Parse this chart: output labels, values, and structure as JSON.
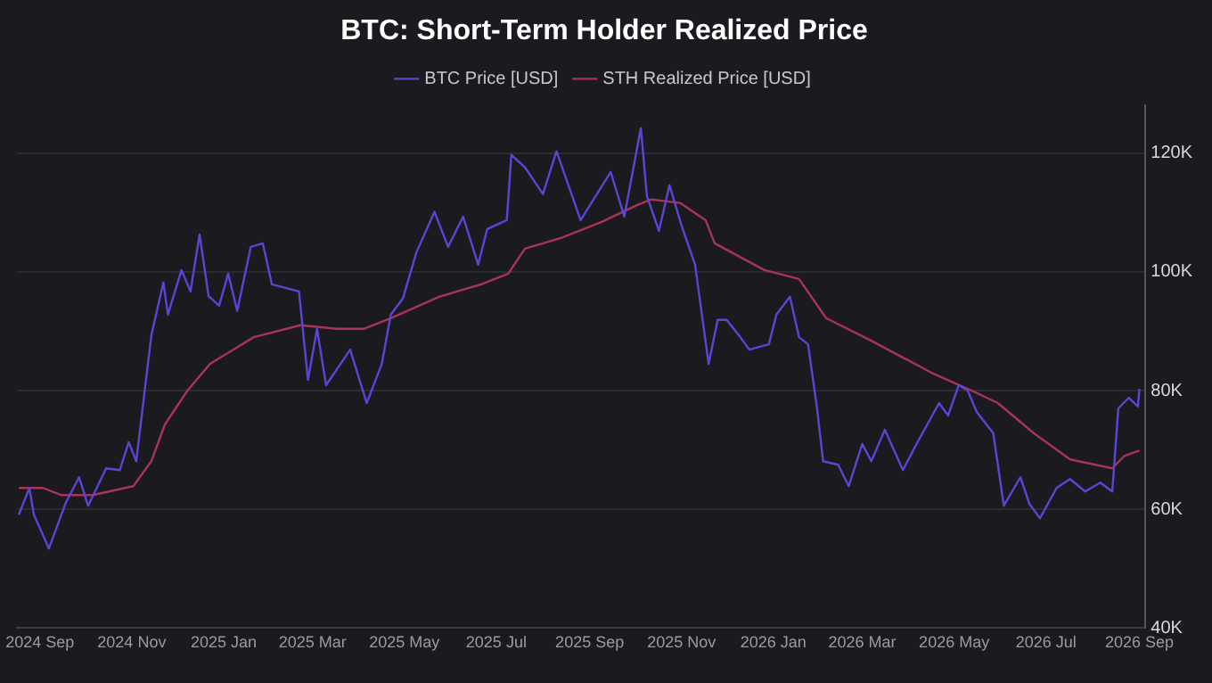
{
  "chart_data": {
    "type": "line",
    "title": "BTC: Short-Term Holder Realized Price",
    "xlim": [
      "2024-08-17",
      "2026-09-05"
    ],
    "xticks": [
      {
        "value": "2024-09-01",
        "label": "2024 Sep"
      },
      {
        "value": "2024-11-01",
        "label": "2024 Nov"
      },
      {
        "value": "2025-01-01",
        "label": "2025 Jan"
      },
      {
        "value": "2025-03-01",
        "label": "2025 Mar"
      },
      {
        "value": "2025-05-01",
        "label": "2025 May"
      },
      {
        "value": "2025-07-01",
        "label": "2025 Jul"
      },
      {
        "value": "2025-09-01",
        "label": "2025 Sep"
      },
      {
        "value": "2025-11-01",
        "label": "2025 Nov"
      },
      {
        "value": "2026-01-01",
        "label": "2026 Jan"
      },
      {
        "value": "2026-03-01",
        "label": "2026 Mar"
      },
      {
        "value": "2026-05-01",
        "label": "2026 May"
      },
      {
        "value": "2026-07-01",
        "label": "2026 Jul"
      },
      {
        "value": "2026-09-01",
        "label": "2026 Sep"
      }
    ],
    "ylim": [
      40000,
      128000
    ],
    "yticks": [
      {
        "value": 40000,
        "label": "40K"
      },
      {
        "value": 60000,
        "label": "60K"
      },
      {
        "value": 80000,
        "label": "80K"
      },
      {
        "value": 100000,
        "label": "100K"
      },
      {
        "value": 120000,
        "label": "120K"
      }
    ],
    "grid": "y",
    "legend": "top",
    "marker": "none",
    "series": [
      {
        "name": "BTC Price [USD]",
        "color": "#5b45d6",
        "x": [
          "2024-08-18",
          "2024-08-25",
          "2024-08-28",
          "2024-09-07",
          "2024-09-18",
          "2024-09-27",
          "2024-10-03",
          "2024-10-15",
          "2024-10-24",
          "2024-10-30",
          "2024-11-04",
          "2024-11-10",
          "2024-11-14",
          "2024-11-22",
          "2024-11-25",
          "2024-12-04",
          "2024-12-10",
          "2024-12-16",
          "2024-12-22",
          "2024-12-29",
          "2025-01-04",
          "2025-01-10",
          "2025-01-19",
          "2025-01-27",
          "2025-02-02",
          "2025-02-20",
          "2025-02-26",
          "2025-03-04",
          "2025-03-10",
          "2025-03-26",
          "2025-04-06",
          "2025-04-16",
          "2025-04-22",
          "2025-04-30",
          "2025-05-09",
          "2025-05-21",
          "2025-05-30",
          "2025-06-09",
          "2025-06-19",
          "2025-06-25",
          "2025-07-08",
          "2025-07-11",
          "2025-07-20",
          "2025-08-01",
          "2025-08-10",
          "2025-08-26",
          "2025-09-15",
          "2025-09-24",
          "2025-10-05",
          "2025-10-09",
          "2025-10-17",
          "2025-10-24",
          "2025-11-01",
          "2025-11-10",
          "2025-11-19",
          "2025-11-25",
          "2025-12-01",
          "2025-12-10",
          "2025-12-16",
          "2025-12-29",
          "2026-01-03",
          "2026-01-12",
          "2026-01-18",
          "2026-01-24",
          "2026-01-30",
          "2026-02-03",
          "2026-02-13",
          "2026-02-20",
          "2026-03-01",
          "2026-03-07",
          "2026-03-16",
          "2026-03-28",
          "2026-04-06",
          "2026-04-21",
          "2026-04-27",
          "2026-05-04",
          "2026-05-10",
          "2026-05-16",
          "2026-05-27",
          "2026-06-03",
          "2026-06-14",
          "2026-06-20",
          "2026-06-27",
          "2026-07-08",
          "2026-07-17",
          "2026-07-27",
          "2026-08-06",
          "2026-08-14",
          "2026-08-18",
          "2026-08-25",
          "2026-08-31",
          "2026-09-01"
        ],
        "values": [
          59100,
          63600,
          59100,
          53400,
          61000,
          65400,
          60600,
          66900,
          66600,
          71300,
          68100,
          80900,
          89300,
          98200,
          92800,
          100300,
          96700,
          106300,
          95900,
          94300,
          99700,
          93400,
          104200,
          104800,
          97900,
          96700,
          81800,
          90400,
          80900,
          86900,
          77900,
          84500,
          92800,
          95500,
          103300,
          110100,
          104200,
          109300,
          101200,
          107200,
          108700,
          119700,
          117600,
          113100,
          120300,
          108700,
          116800,
          109300,
          124200,
          112800,
          106900,
          114600,
          107800,
          101200,
          84500,
          91900,
          91900,
          89000,
          86900,
          87800,
          92800,
          95800,
          89000,
          87800,
          77000,
          68100,
          67500,
          63900,
          71000,
          68100,
          73400,
          66600,
          71000,
          77900,
          75800,
          80900,
          80000,
          76400,
          72800,
          60600,
          65400,
          60900,
          58500,
          63600,
          65100,
          63000,
          64500,
          63000,
          77000,
          78800,
          77300,
          80300
        ]
      },
      {
        "name": "STH Realized Price [USD]",
        "color": "#a8345a",
        "x": [
          "2024-08-18",
          "2024-09-03",
          "2024-09-15",
          "2024-10-06",
          "2024-11-02",
          "2024-11-14",
          "2024-11-23",
          "2024-12-08",
          "2024-12-23",
          "2025-01-21",
          "2025-02-21",
          "2025-03-17",
          "2025-04-04",
          "2025-04-22",
          "2025-05-24",
          "2025-06-21",
          "2025-07-09",
          "2025-07-20",
          "2025-08-13",
          "2025-09-09",
          "2025-10-03",
          "2025-10-12",
          "2025-10-31",
          "2025-11-17",
          "2025-11-23",
          "2025-12-26",
          "2026-01-18",
          "2026-02-05",
          "2026-03-07",
          "2026-04-16",
          "2026-05-10",
          "2026-05-30",
          "2026-06-23",
          "2026-07-17",
          "2026-08-14",
          "2026-08-22",
          "2026-09-01"
        ],
        "values": [
          63600,
          63600,
          62400,
          62400,
          63900,
          68100,
          74300,
          80000,
          84500,
          89000,
          91000,
          90400,
          90400,
          92200,
          95800,
          97900,
          99700,
          103900,
          105700,
          108400,
          111300,
          112200,
          111600,
          108700,
          104800,
          100300,
          98800,
          92200,
          88400,
          83000,
          80300,
          77900,
          72800,
          68400,
          66900,
          69000,
          69900
        ]
      }
    ]
  }
}
